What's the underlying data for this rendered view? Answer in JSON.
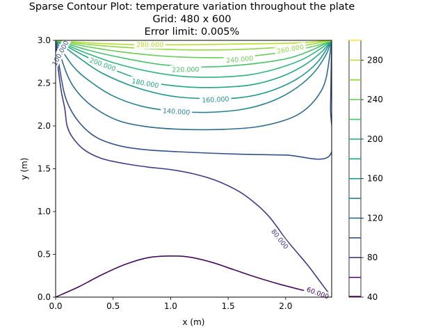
{
  "chart_data": {
    "type": "contour",
    "title_lines": [
      "Sparse Contour Plot: temperature variation throughout the plate",
      "Grid: 480  x  600",
      "Error limit: 0.005%"
    ],
    "xlabel": "x (m)",
    "ylabel": "y (m)",
    "xlim": [
      0,
      2.4
    ],
    "ylim": [
      0,
      3.0
    ],
    "x_ticks": [
      "0.0",
      "0.5",
      "1.0",
      "1.5",
      "2.0"
    ],
    "x_tick_values": [
      0,
      0.5,
      1.0,
      1.5,
      2.0
    ],
    "y_ticks": [
      "0.0",
      "0.5",
      "1.0",
      "1.5",
      "2.0",
      "2.5",
      "3.0"
    ],
    "y_tick_values": [
      0,
      0.5,
      1.0,
      1.5,
      2.0,
      2.5,
      3.0
    ],
    "colorbar": {
      "range": [
        40,
        300
      ],
      "tick_labels": [
        "40",
        "80",
        "120",
        "160",
        "200",
        "240",
        "280"
      ],
      "tick_values": [
        40,
        80,
        120,
        160,
        200,
        240,
        280
      ]
    },
    "levels": [
      {
        "value": 60,
        "color": "#46085c",
        "label": "60.000",
        "label_pos": [
          2.28,
          0.05
        ],
        "label_angle": 20,
        "points": [
          [
            0,
            0
          ],
          [
            0.2,
            0.12
          ],
          [
            0.4,
            0.26
          ],
          [
            0.6,
            0.38
          ],
          [
            0.8,
            0.46
          ],
          [
            0.98,
            0.48
          ],
          [
            1.15,
            0.47
          ],
          [
            1.35,
            0.41
          ],
          [
            1.55,
            0.32
          ],
          [
            1.75,
            0.23
          ],
          [
            1.95,
            0.15
          ],
          [
            2.15,
            0.08
          ],
          [
            2.3,
            0.03
          ],
          [
            2.4,
            0
          ]
        ]
      },
      {
        "value": 80,
        "color": "#3e3a89",
        "label": "80.000",
        "label_pos": [
          1.95,
          0.68
        ],
        "label_angle": 52,
        "points": [
          [
            0,
            3.0
          ],
          [
            0.02,
            2.7
          ],
          [
            0.05,
            2.4
          ],
          [
            0.08,
            2.2
          ],
          [
            0.1,
            2.0
          ],
          [
            0.15,
            1.86
          ],
          [
            0.25,
            1.72
          ],
          [
            0.4,
            1.62
          ],
          [
            0.6,
            1.56
          ],
          [
            0.8,
            1.52
          ],
          [
            1.0,
            1.49
          ],
          [
            1.2,
            1.44
          ],
          [
            1.4,
            1.36
          ],
          [
            1.6,
            1.23
          ],
          [
            1.75,
            1.08
          ],
          [
            1.85,
            0.95
          ],
          [
            1.92,
            0.83
          ],
          [
            2.0,
            0.68
          ],
          [
            2.1,
            0.52
          ],
          [
            2.2,
            0.36
          ],
          [
            2.3,
            0.18
          ],
          [
            2.4,
            0
          ]
        ]
      },
      {
        "value": 100,
        "color": "#31518a",
        "label": "100.000",
        "label_pos": [
          0.04,
          2.85
        ],
        "label_angle": -62,
        "points": [
          [
            0,
            3.0
          ],
          [
            0.05,
            2.55
          ],
          [
            0.1,
            2.28
          ],
          [
            0.2,
            2.05
          ],
          [
            0.35,
            1.87
          ],
          [
            0.55,
            1.77
          ],
          [
            0.8,
            1.72
          ],
          [
            1.2,
            1.69
          ],
          [
            1.6,
            1.67
          ],
          [
            2.0,
            1.66
          ],
          [
            2.38,
            1.65
          ],
          [
            2.39,
            2.2
          ],
          [
            2.395,
            2.6
          ],
          [
            2.4,
            3.0
          ]
        ]
      },
      {
        "value": 120,
        "color": "#2e6a8e",
        "label": "",
        "points": [
          [
            0,
            3.0
          ],
          [
            0.1,
            2.6
          ],
          [
            0.2,
            2.38
          ],
          [
            0.35,
            2.2
          ],
          [
            0.55,
            2.06
          ],
          [
            0.8,
            1.99
          ],
          [
            1.1,
            1.96
          ],
          [
            1.45,
            1.96
          ],
          [
            1.75,
            1.99
          ],
          [
            2.0,
            2.07
          ],
          [
            2.15,
            2.17
          ],
          [
            2.27,
            2.33
          ],
          [
            2.35,
            2.55
          ],
          [
            2.4,
            3.0
          ]
        ]
      },
      {
        "value": 140,
        "color": "#26818e",
        "label": "140.000",
        "label_pos": [
          1.05,
          2.17
        ],
        "label_angle": 4,
        "points": [
          [
            0,
            3.0
          ],
          [
            0.15,
            2.7
          ],
          [
            0.3,
            2.52
          ],
          [
            0.5,
            2.35
          ],
          [
            0.75,
            2.23
          ],
          [
            1.05,
            2.17
          ],
          [
            1.35,
            2.16
          ],
          [
            1.65,
            2.2
          ],
          [
            1.9,
            2.3
          ],
          [
            2.1,
            2.45
          ],
          [
            2.25,
            2.63
          ],
          [
            2.35,
            2.83
          ],
          [
            2.4,
            3.0
          ]
        ]
      },
      {
        "value": 160,
        "color": "#1f968b",
        "label": "160.000",
        "label_pos": [
          1.39,
          2.31
        ],
        "label_angle": -3,
        "points": [
          [
            0,
            3.0
          ],
          [
            0.2,
            2.8
          ],
          [
            0.4,
            2.62
          ],
          [
            0.7,
            2.45
          ],
          [
            1.0,
            2.35
          ],
          [
            1.3,
            2.32
          ],
          [
            1.6,
            2.33
          ],
          [
            1.85,
            2.4
          ],
          [
            2.1,
            2.55
          ],
          [
            2.28,
            2.75
          ],
          [
            2.4,
            3.0
          ]
        ]
      },
      {
        "value": 180,
        "color": "#21a585",
        "label": "180.000",
        "label_pos": [
          0.78,
          2.5
        ],
        "label_angle": 10,
        "points": [
          [
            0,
            3.0
          ],
          [
            0.25,
            2.82
          ],
          [
            0.5,
            2.66
          ],
          [
            0.8,
            2.52
          ],
          [
            1.1,
            2.46
          ],
          [
            1.4,
            2.45
          ],
          [
            1.7,
            2.48
          ],
          [
            1.95,
            2.57
          ],
          [
            2.15,
            2.7
          ],
          [
            2.3,
            2.85
          ],
          [
            2.4,
            3.0
          ]
        ]
      },
      {
        "value": 200,
        "color": "#2fb47c",
        "label": "200.000",
        "label_pos": [
          0.41,
          2.72
        ],
        "label_angle": 20,
        "points": [
          [
            0,
            3.0
          ],
          [
            0.25,
            2.86
          ],
          [
            0.5,
            2.74
          ],
          [
            0.8,
            2.64
          ],
          [
            1.1,
            2.58
          ],
          [
            1.4,
            2.57
          ],
          [
            1.7,
            2.6
          ],
          [
            1.95,
            2.68
          ],
          [
            2.15,
            2.78
          ],
          [
            2.3,
            2.9
          ],
          [
            2.4,
            3.0
          ]
        ]
      },
      {
        "value": 220,
        "color": "#4ac16d",
        "label": "220.000",
        "label_pos": [
          1.13,
          2.66
        ],
        "label_angle": -1,
        "points": [
          [
            0,
            3.0
          ],
          [
            0.3,
            2.88
          ],
          [
            0.6,
            2.79
          ],
          [
            0.9,
            2.72
          ],
          [
            1.2,
            2.69
          ],
          [
            1.5,
            2.7
          ],
          [
            1.8,
            2.74
          ],
          [
            2.05,
            2.8
          ],
          [
            2.25,
            2.9
          ],
          [
            2.4,
            3.0
          ]
        ]
      },
      {
        "value": 240,
        "color": "#6ccd5a",
        "label": "240.000",
        "label_pos": [
          1.6,
          2.78
        ],
        "label_angle": -5,
        "points": [
          [
            0,
            3.0
          ],
          [
            0.3,
            2.92
          ],
          [
            0.6,
            2.86
          ],
          [
            0.9,
            2.82
          ],
          [
            1.2,
            2.8
          ],
          [
            1.5,
            2.8
          ],
          [
            1.8,
            2.83
          ],
          [
            2.1,
            2.89
          ],
          [
            2.3,
            2.95
          ],
          [
            2.4,
            3.0
          ]
        ]
      },
      {
        "value": 260,
        "color": "#90d743",
        "label": "260.000",
        "label_pos": [
          2.04,
          2.9
        ],
        "label_angle": -10,
        "points": [
          [
            0,
            3.0
          ],
          [
            0.3,
            2.95
          ],
          [
            0.7,
            2.91
          ],
          [
            1.1,
            2.89
          ],
          [
            1.5,
            2.89
          ],
          [
            1.85,
            2.91
          ],
          [
            2.15,
            2.94
          ],
          [
            2.4,
            3.0
          ]
        ]
      },
      {
        "value": 280,
        "color": "#b5de2b",
        "label": "280.000",
        "label_pos": [
          0.82,
          2.95
        ],
        "label_angle": 0,
        "points": [
          [
            0,
            3.0
          ],
          [
            0.3,
            2.97
          ],
          [
            0.7,
            2.95
          ],
          [
            1.2,
            2.95
          ],
          [
            1.7,
            2.96
          ],
          [
            2.1,
            2.97
          ],
          [
            2.4,
            3.0
          ]
        ]
      }
    ],
    "grid": false,
    "legend": "colorbar-right"
  }
}
